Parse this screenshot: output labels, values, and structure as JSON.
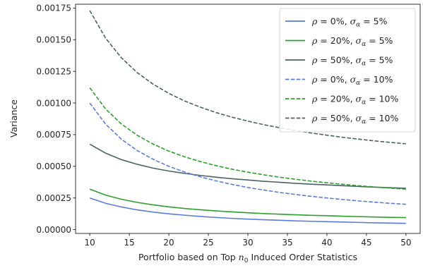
{
  "chart_data": {
    "type": "line",
    "title": "",
    "xlabel_parts": [
      "Portfolio based on Top ",
      "n",
      "0",
      " Induced Order Statistics"
    ],
    "ylabel": "Variance",
    "xlim": [
      8.2,
      51.8
    ],
    "ylim": [
      -3e-05,
      0.00178
    ],
    "xticks": [
      10,
      15,
      20,
      25,
      30,
      35,
      40,
      45,
      50
    ],
    "xtick_labels": [
      "10",
      "15",
      "20",
      "25",
      "30",
      "35",
      "40",
      "45",
      "50"
    ],
    "yticks": [
      0,
      0.00025,
      0.0005,
      0.00075,
      0.001,
      0.00125,
      0.0015,
      0.00175
    ],
    "ytick_labels": [
      "0.00000",
      "0.00025",
      "0.00050",
      "0.00075",
      "0.00100",
      "0.00125",
      "0.00150",
      "0.00175"
    ],
    "grid": false,
    "legend_position": "top-right",
    "x": [
      10,
      12,
      14,
      16,
      18,
      20,
      22,
      24,
      26,
      28,
      30,
      32,
      34,
      36,
      38,
      40,
      42,
      44,
      46,
      48,
      50
    ],
    "series": [
      {
        "legend": {
          "rho": "0%",
          "sigma": "5%"
        },
        "color": "#5a7ce2",
        "dash": "solid",
        "values": [
          0.00025,
          0.000208,
          0.000179,
          0.000156,
          0.000139,
          0.000125,
          0.000114,
          0.000104,
          9.6e-05,
          8.9e-05,
          8.3e-05,
          7.8e-05,
          7.4e-05,
          6.9e-05,
          6.6e-05,
          6.3e-05,
          6e-05,
          5.7e-05,
          5.4e-05,
          5.2e-05,
          5e-05
        ]
      },
      {
        "legend": {
          "rho": "20%",
          "sigma": "5%"
        },
        "color": "#2ca02c",
        "dash": "solid",
        "values": [
          0.00032,
          0.000273,
          0.00024,
          0.000215,
          0.000196,
          0.00018,
          0.000167,
          0.000157,
          0.000148,
          0.00014,
          0.000133,
          0.000127,
          0.000122,
          0.000117,
          0.000113,
          0.00011,
          0.000106,
          0.000103,
          0.0001,
          9.7e-05,
          9.5e-05
        ]
      },
      {
        "legend": {
          "rho": "50%",
          "sigma": "5%"
        },
        "color": "#4a6363",
        "dash": "solid",
        "values": [
          0.000675,
          0.000604,
          0.000553,
          0.000516,
          0.000486,
          0.000463,
          0.000444,
          0.000428,
          0.000414,
          0.000402,
          0.000392,
          0.000382,
          0.000374,
          0.000366,
          0.000359,
          0.000353,
          0.000347,
          0.000341,
          0.000336,
          0.000331,
          0.000327
        ]
      },
      {
        "legend": {
          "rho": "0%",
          "sigma": "10%"
        },
        "color": "#5a7ce2",
        "dash": "dashed",
        "values": [
          0.001,
          0.000833,
          0.000714,
          0.000625,
          0.000556,
          0.0005,
          0.000455,
          0.000417,
          0.000385,
          0.000357,
          0.000333,
          0.000313,
          0.000294,
          0.000278,
          0.000263,
          0.00025,
          0.000238,
          0.000227,
          0.000217,
          0.000208,
          0.0002
        ]
      },
      {
        "legend": {
          "rho": "20%",
          "sigma": "10%"
        },
        "color": "#2ca02c",
        "dash": "dashed",
        "values": [
          0.00112,
          0.000953,
          0.000834,
          0.000745,
          0.000676,
          0.00062,
          0.000575,
          0.000537,
          0.000505,
          0.000477,
          0.000454,
          0.000433,
          0.000414,
          0.000398,
          0.000383,
          0.00037,
          0.000358,
          0.000347,
          0.000337,
          0.000328,
          0.00032
        ]
      },
      {
        "legend": {
          "rho": "50%",
          "sigma": "10%"
        },
        "color": "#4a6363",
        "dash": "dashed",
        "values": [
          0.00173,
          0.001512,
          0.001357,
          0.00124,
          0.001149,
          0.001076,
          0.001016,
          0.000967,
          0.000924,
          0.000888,
          0.000857,
          0.000829,
          0.000805,
          0.000783,
          0.000763,
          0.000746,
          0.000729,
          0.000715,
          0.000701,
          0.000689,
          0.000678
        ]
      }
    ]
  }
}
